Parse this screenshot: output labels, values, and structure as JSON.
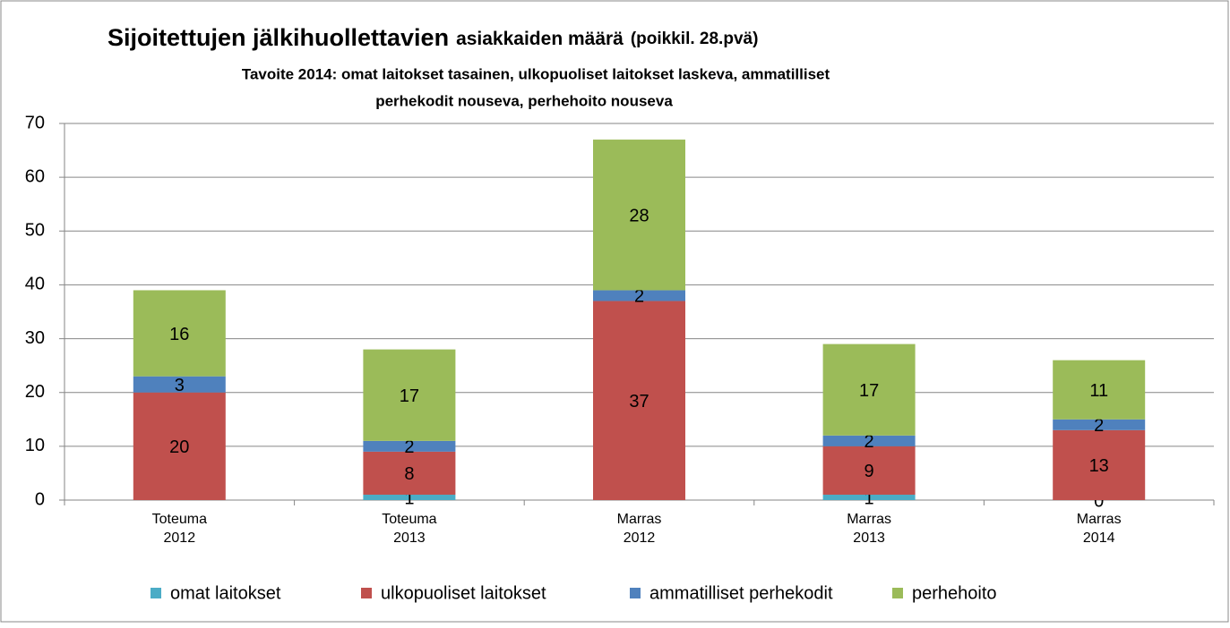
{
  "chart_data": {
    "type": "stacked_bar",
    "title": [
      "Sijoitettujen jälkihuollettavien",
      "asiakkaiden määrä",
      "(poikkil. 28.pvä)"
    ],
    "subtitle": [
      "Tavoite 2014: omat laitokset tasainen, ulkopuoliset laitokset laskeva, ammatilliset",
      "perhekodit nouseva, perhehoito nouseva"
    ],
    "categories": [
      [
        "Toteuma",
        "2012"
      ],
      [
        "Toteuma",
        "2013"
      ],
      [
        "Marras",
        "2012"
      ],
      [
        "Marras",
        "2013"
      ],
      [
        "Marras",
        "2014"
      ]
    ],
    "series": [
      {
        "name": "omat laitokset",
        "color": "#4bacc6",
        "values": [
          0,
          1,
          0,
          1,
          0
        ],
        "value_labels": [
          null,
          "1",
          null,
          "1",
          "0"
        ]
      },
      {
        "name": "ulkopuoliset laitokset",
        "color": "#c0504d",
        "values": [
          20,
          8,
          37,
          9,
          13
        ]
      },
      {
        "name": "ammatilliset perhekodit",
        "color": "#4f81bd",
        "values": [
          3,
          2,
          2,
          2,
          2
        ]
      },
      {
        "name": "perhehoito",
        "color": "#9bbb59",
        "values": [
          16,
          17,
          28,
          17,
          11
        ]
      }
    ],
    "ylim": [
      0,
      70
    ],
    "yticks": [
      0,
      10,
      20,
      30,
      40,
      50,
      60,
      70
    ],
    "grid": true,
    "legend": "bottom"
  }
}
